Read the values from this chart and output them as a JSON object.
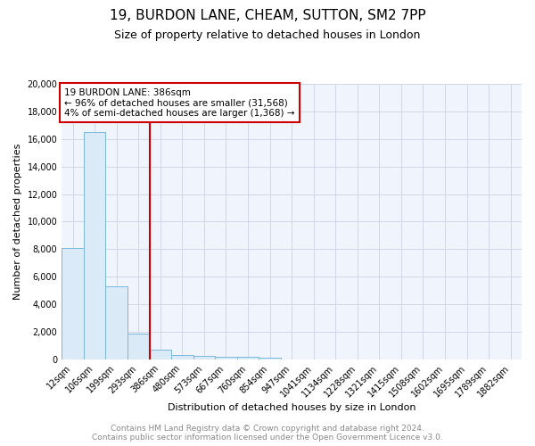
{
  "title": "19, BURDON LANE, CHEAM, SUTTON, SM2 7PP",
  "subtitle": "Size of property relative to detached houses in London",
  "xlabel": "Distribution of detached houses by size in London",
  "ylabel": "Number of detached properties",
  "footer": "Contains HM Land Registry data © Crown copyright and database right 2024.\nContains public sector information licensed under the Open Government Licence v3.0.",
  "bar_labels": [
    "12sqm",
    "106sqm",
    "199sqm",
    "293sqm",
    "386sqm",
    "480sqm",
    "573sqm",
    "667sqm",
    "760sqm",
    "854sqm",
    "947sqm",
    "1041sqm",
    "1134sqm",
    "1228sqm",
    "1321sqm",
    "1415sqm",
    "1508sqm",
    "1602sqm",
    "1695sqm",
    "1789sqm",
    "1882sqm"
  ],
  "bar_values": [
    8100,
    16500,
    5300,
    1850,
    700,
    320,
    240,
    200,
    200,
    150,
    0,
    0,
    0,
    0,
    0,
    0,
    0,
    0,
    0,
    0,
    0
  ],
  "bar_color": "#daeaf7",
  "bar_edge_color": "#7ab8d9",
  "vline_color": "#cc0000",
  "annotation_title": "19 BURDON LANE: 386sqm",
  "annotation_line1": "← 96% of detached houses are smaller (31,568)",
  "annotation_line2": "4% of semi-detached houses are larger (1,368) →",
  "annotation_box_color": "#cc0000",
  "ylim": [
    0,
    20000
  ],
  "yticks": [
    0,
    2000,
    4000,
    6000,
    8000,
    10000,
    12000,
    14000,
    16000,
    18000,
    20000
  ],
  "grid_color": "#d0d8e8",
  "bg_color": "#f0f4fc",
  "title_fontsize": 11,
  "subtitle_fontsize": 9,
  "ylabel_fontsize": 8,
  "xlabel_fontsize": 8,
  "tick_fontsize": 7,
  "annotation_fontsize": 7.5,
  "footer_fontsize": 6.5
}
